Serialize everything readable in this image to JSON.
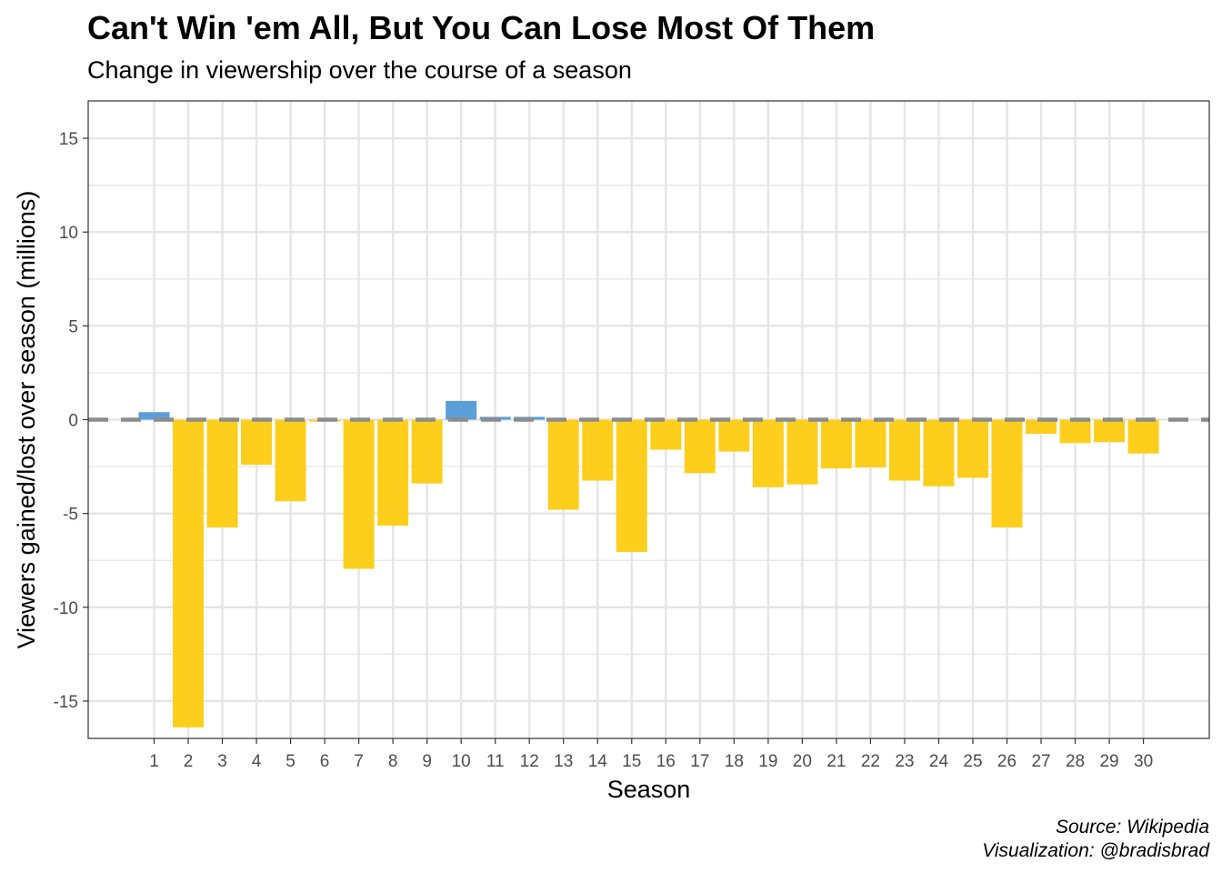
{
  "title": "Can't Win 'em All, But You Can Lose Most Of Them",
  "subtitle": "Change in viewership over the course of a season",
  "caption": {
    "line1": "Source: Wikipedia",
    "line2": "Visualization: @bradisbrad"
  },
  "colors": {
    "positive": "#5A9FD8",
    "negative": "#FDCF1C",
    "reference_line": "#8C8C8C",
    "grid": "#E5E5E5",
    "panel_border": "#333333"
  },
  "chart_data": {
    "type": "bar",
    "title": "Can't Win 'em All, But You Can Lose Most Of Them",
    "subtitle": "Change in viewership over the course of a season",
    "xlabel": "Season",
    "ylabel": "Viewers gained/lost over season (millions)",
    "ylim": [
      -17,
      17
    ],
    "yticks": [
      15,
      10,
      5,
      0,
      -5,
      -10,
      -15
    ],
    "ytick_labels": [
      "15",
      "10",
      "5",
      "0",
      "-5",
      "-10",
      "-15"
    ],
    "categories": [
      "1",
      "2",
      "3",
      "4",
      "5",
      "6",
      "7",
      "8",
      "9",
      "10",
      "11",
      "12",
      "13",
      "14",
      "15",
      "16",
      "17",
      "18",
      "19",
      "20",
      "21",
      "22",
      "23",
      "24",
      "25",
      "26",
      "27",
      "28",
      "29",
      "30"
    ],
    "values": [
      0.4,
      -16.4,
      -5.75,
      -2.4,
      -4.35,
      -0.1,
      -7.95,
      -5.65,
      -3.4,
      1.0,
      0.15,
      0.15,
      -4.8,
      -3.25,
      -7.05,
      -1.6,
      -2.85,
      -1.7,
      -3.6,
      -3.45,
      -2.6,
      -2.55,
      -3.25,
      -3.55,
      -3.1,
      -5.75,
      -0.75,
      -1.25,
      -1.2,
      -1.8
    ],
    "reference_line": {
      "y": 0,
      "style": "dashed"
    },
    "grid": true,
    "legend": "none"
  }
}
